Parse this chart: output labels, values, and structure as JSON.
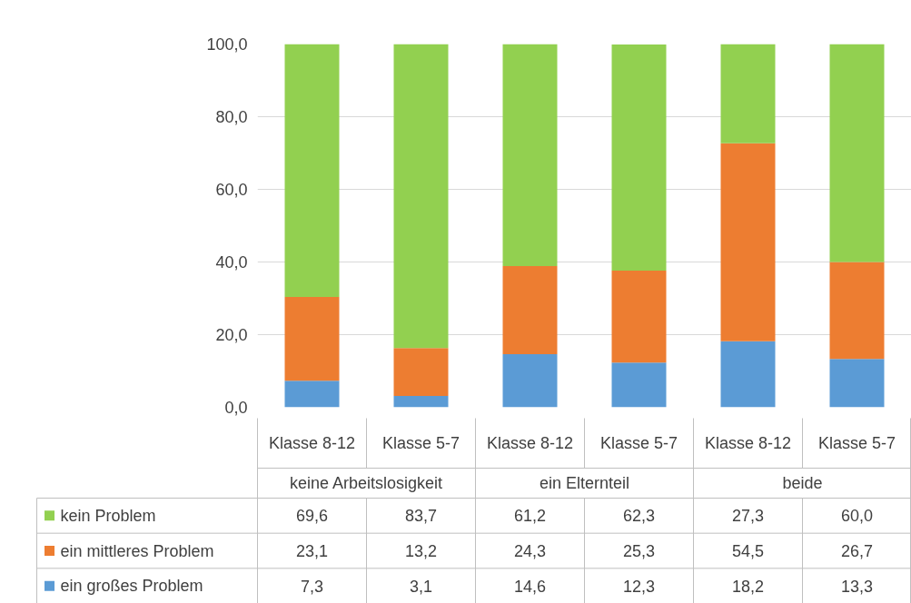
{
  "chart_data": {
    "type": "bar",
    "stacked": true,
    "categories": [
      "Klasse 8-12",
      "Klasse 5-7",
      "Klasse 8-12",
      "Klasse 5-7",
      "Klasse 8-12",
      "Klasse 5-7"
    ],
    "annotations": [
      "keine Arbeitslosigkeit",
      "ein Elternteil",
      "beide"
    ],
    "series": [
      {
        "name": "ein großes Problem",
        "color": "#5b9bd5",
        "values": [
          7.3,
          3.1,
          14.6,
          12.3,
          18.2,
          13.3
        ],
        "value_labels": [
          "7,3",
          "3,1",
          "14,6",
          "12,3",
          "18,2",
          "13,3"
        ]
      },
      {
        "name": "ein mittleres Problem",
        "color": "#ed7d31",
        "values": [
          23.1,
          13.2,
          24.3,
          25.3,
          54.5,
          26.7
        ],
        "value_labels": [
          "23,1",
          "13,2",
          "24,3",
          "25,3",
          "54,5",
          "26,7"
        ]
      },
      {
        "name": "kein Problem",
        "color": "#92d050",
        "values": [
          69.6,
          83.7,
          61.2,
          62.3,
          27.3,
          60.0
        ],
        "value_labels": [
          "69,6",
          "83,7",
          "61,2",
          "62,3",
          "27,3",
          "60,0"
        ]
      }
    ],
    "ylim": [
      0,
      100
    ],
    "yticks": [
      {
        "value": 0,
        "label": "0,0"
      },
      {
        "value": 20,
        "label": "20,0"
      },
      {
        "value": 40,
        "label": "40,0"
      },
      {
        "value": 60,
        "label": "60,0"
      },
      {
        "value": 80,
        "label": "80,0"
      },
      {
        "value": 100,
        "label": "100,0"
      }
    ],
    "grid": "y",
    "legend": "bottom"
  }
}
